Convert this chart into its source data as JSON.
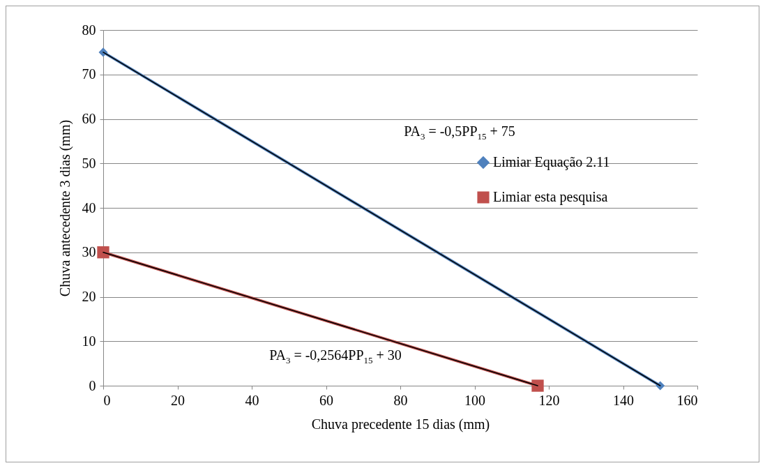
{
  "chart_data": {
    "type": "line",
    "xlabel": "Chuva precedente 15 dias (mm)",
    "ylabel": "Chuva antecedente 3 dias (mm)",
    "xlim": [
      0,
      160
    ],
    "xticks": [
      0,
      20,
      40,
      60,
      80,
      100,
      120,
      140,
      160
    ],
    "ylim": [
      0,
      80
    ],
    "yticks": [
      0,
      10,
      20,
      30,
      40,
      50,
      60,
      70,
      80
    ],
    "grid": "y",
    "legend": "right",
    "series": [
      {
        "name": "Limiar Equação 2.11",
        "color": "#4f81bd",
        "marker": "diamond",
        "x": [
          0,
          150
        ],
        "values": [
          75,
          0
        ]
      },
      {
        "name": "Limiar esta pesquisa",
        "color": "#c0504d",
        "marker": "square",
        "x": [
          0,
          117
        ],
        "values": [
          30,
          0
        ]
      },
      {
        "type": "line",
        "color": "#000000",
        "marker": "none",
        "x": [
          0,
          150
        ],
        "values": [
          75,
          0
        ]
      },
      {
        "type": "line",
        "color": "#000000",
        "marker": "none",
        "x": [
          0,
          117
        ],
        "values": [
          30,
          0
        ]
      }
    ],
    "annotations": [
      "PA$_{3}$ = -0,5PP$_{15}$ + 75",
      "PA$_{3}$ = -0,2564PP$_{15}$ + 30"
    ]
  }
}
